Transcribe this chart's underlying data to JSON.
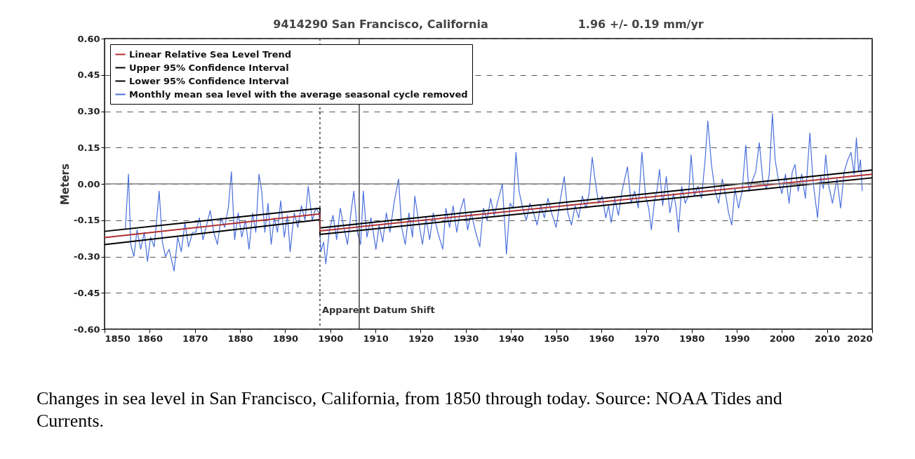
{
  "chart_data": {
    "type": "line",
    "title": "9414290 San Francisco, California",
    "subtitle": "1.96 +/- 0.19 mm/yr",
    "ylabel": "Meters",
    "xlim": [
      1850,
      2020
    ],
    "xticks": [
      1850,
      1860,
      1870,
      1880,
      1890,
      1900,
      1910,
      1920,
      1930,
      1940,
      1950,
      1960,
      1970,
      1980,
      1990,
      2000,
      2010,
      2020
    ],
    "ylim": [
      -0.6,
      0.6
    ],
    "yticks": [
      {
        "value": -0.6,
        "label": "-0.60"
      },
      {
        "value": -0.45,
        "label": "-0.45"
      },
      {
        "value": -0.3,
        "label": "-0.30"
      },
      {
        "value": -0.15,
        "label": "-0.15"
      },
      {
        "value": 0,
        "label": "0.00"
      },
      {
        "value": 0.15,
        "label": "0.15"
      },
      {
        "value": 0.3,
        "label": "0.30"
      },
      {
        "value": 0.45,
        "label": "0.45"
      },
      {
        "value": 0.6,
        "label": "0.60"
      }
    ],
    "grid": "y",
    "legend": "top left",
    "marker": "none",
    "line_style": "solid",
    "ref_lines": [
      {
        "axis": "y",
        "value": 0,
        "color": "#808080",
        "line_style": "solid"
      },
      {
        "axis": "x",
        "value": 1897.7,
        "label": "Apparent Datum Shift",
        "color": "#404040",
        "line_style": "dotted"
      },
      {
        "axis": "x",
        "value": 1906.4,
        "color": "#404040",
        "line_style": "solid"
      }
    ],
    "series": [
      {
        "name": "Linear Relative Sea Level Trend",
        "color": "#b03030",
        "x": [
          1850,
          1897.7,
          1897.7,
          2020
        ],
        "values": [
          -0.222,
          -0.124,
          -0.194,
          0.04
        ]
      },
      {
        "name": "Upper 95% Confidence Interval",
        "color": "#000000",
        "x": [
          1850,
          1897.7,
          1897.7,
          2020
        ],
        "values": [
          -0.196,
          -0.101,
          -0.182,
          0.057
        ]
      },
      {
        "name": "Lower 95% Confidence Interval",
        "color": "#000000",
        "x": [
          1850,
          1897.7,
          1897.7,
          2020
        ],
        "values": [
          -0.251,
          -0.148,
          -0.209,
          0.025
        ]
      },
      {
        "name": "Monthly mean sea level with the average seasonal cycle removed",
        "color": "#4a6fdc",
        "x": [
          1854.6,
          1855.3,
          1855.8,
          1856.5,
          1857.2,
          1858,
          1858.8,
          1859.5,
          1860.2,
          1861,
          1862.1,
          1862.8,
          1863.5,
          1864.3,
          1865.4,
          1866.2,
          1867,
          1867.8,
          1868.6,
          1869.5,
          1870.2,
          1871,
          1871.8,
          1872.6,
          1873.4,
          1874.2,
          1875,
          1875.8,
          1876.6,
          1877.4,
          1878.1,
          1878.8,
          1879.6,
          1880.4,
          1881.2,
          1882,
          1882.8,
          1883.5,
          1884.2,
          1884.8,
          1885.5,
          1886.2,
          1886.9,
          1887.6,
          1888.3,
          1889,
          1889.8,
          1890.5,
          1891.1,
          1892,
          1892.8,
          1893.6,
          1894.4,
          1895.1,
          1896,
          1896.8,
          1897.5,
          1897.9,
          1898.5,
          1899,
          1899.8,
          1900.6,
          1901.4,
          1902.2,
          1903,
          1903.8,
          1904.5,
          1905.2,
          1906,
          1906.7,
          1907.3,
          1908.1,
          1909,
          1910.1,
          1910.8,
          1911.6,
          1912.4,
          1913.2,
          1914.1,
          1915.1,
          1915.8,
          1916.6,
          1917.4,
          1918.2,
          1918.7,
          1919.6,
          1920.4,
          1921.2,
          1922,
          1922.8,
          1923.8,
          1924.9,
          1925.6,
          1926.4,
          1927.2,
          1928,
          1928.8,
          1929.6,
          1930.4,
          1931.2,
          1932.2,
          1933.1,
          1933.9,
          1934.7,
          1935.5,
          1936.3,
          1937.1,
          1938.1,
          1939,
          1939.8,
          1940.5,
          1941.1,
          1941.8,
          1942.6,
          1943.4,
          1944.2,
          1945,
          1945.8,
          1946.6,
          1947.4,
          1948.2,
          1949,
          1950,
          1950.8,
          1951.8,
          1952.6,
          1953.4,
          1954.2,
          1955,
          1955.8,
          1956.6,
          1957.3,
          1958,
          1958.6,
          1959.4,
          1960.2,
          1961,
          1961.6,
          1962.2,
          1963,
          1963.8,
          1964.6,
          1965.8,
          1966.6,
          1967.4,
          1968.2,
          1969,
          1969.8,
          1970.5,
          1971.1,
          1971.8,
          1972.4,
          1972.9,
          1973.6,
          1974.4,
          1975.2,
          1976,
          1976.6,
          1977.1,
          1977.8,
          1978.6,
          1979.3,
          1979.9,
          1980.6,
          1981.4,
          1982.2,
          1983,
          1983.6,
          1984.4,
          1985.2,
          1986,
          1986.8,
          1987.6,
          1988.2,
          1988.9,
          1989.6,
          1990.4,
          1991.2,
          1992,
          1992.7,
          1993.4,
          1994.2,
          1995,
          1995.8,
          1996.6,
          1997.2,
          1997.9,
          1998.5,
          1999.2,
          2000,
          2000.8,
          2001.6,
          2002.3,
          2002.9,
          2003.6,
          2004.4,
          2005.2,
          2006.2,
          2006.9,
          2007.9,
          2008.6,
          2009.2,
          2009.7,
          2010.4,
          2011.2,
          2012.2,
          2013,
          2013.8,
          2014.6,
          2015.3,
          2016,
          2016.5,
          2017,
          2017.4,
          2017.8
        ],
        "values": [
          -0.19,
          0.04,
          -0.25,
          -0.3,
          -0.19,
          -0.27,
          -0.2,
          -0.32,
          -0.22,
          -0.26,
          -0.03,
          -0.24,
          -0.3,
          -0.27,
          -0.36,
          -0.22,
          -0.28,
          -0.16,
          -0.26,
          -0.2,
          -0.2,
          -0.14,
          -0.23,
          -0.17,
          -0.11,
          -0.2,
          -0.25,
          -0.14,
          -0.18,
          -0.1,
          0.05,
          -0.23,
          -0.12,
          -0.22,
          -0.15,
          -0.27,
          -0.12,
          -0.2,
          0.04,
          -0.03,
          -0.2,
          -0.08,
          -0.25,
          -0.14,
          -0.2,
          -0.07,
          -0.22,
          -0.13,
          -0.28,
          -0.12,
          -0.18,
          -0.09,
          -0.15,
          -0.01,
          -0.15,
          -0.1,
          -0.12,
          -0.28,
          -0.24,
          -0.33,
          -0.19,
          -0.13,
          -0.23,
          -0.1,
          -0.18,
          -0.25,
          -0.13,
          -0.03,
          -0.2,
          -0.25,
          -0.03,
          -0.22,
          -0.14,
          -0.27,
          -0.17,
          -0.24,
          -0.12,
          -0.2,
          -0.08,
          0.02,
          -0.18,
          -0.25,
          -0.12,
          -0.22,
          -0.05,
          -0.16,
          -0.25,
          -0.14,
          -0.23,
          -0.12,
          -0.2,
          -0.27,
          -0.1,
          -0.18,
          -0.09,
          -0.2,
          -0.11,
          -0.06,
          -0.19,
          -0.12,
          -0.2,
          -0.26,
          -0.1,
          -0.15,
          -0.06,
          -0.13,
          -0.07,
          0.0,
          -0.29,
          -0.08,
          -0.1,
          0.13,
          -0.03,
          -0.1,
          -0.15,
          -0.08,
          -0.12,
          -0.17,
          -0.09,
          -0.14,
          -0.06,
          -0.12,
          -0.18,
          -0.08,
          0.03,
          -0.12,
          -0.17,
          -0.09,
          -0.14,
          -0.05,
          -0.1,
          -0.04,
          0.11,
          0.02,
          -0.08,
          -0.05,
          -0.14,
          -0.09,
          -0.16,
          -0.06,
          -0.13,
          -0.03,
          0.07,
          -0.08,
          -0.03,
          -0.1,
          0.13,
          -0.05,
          -0.1,
          -0.19,
          -0.07,
          -0.02,
          0.06,
          -0.09,
          0.03,
          -0.12,
          -0.04,
          -0.1,
          -0.2,
          -0.01,
          -0.08,
          -0.05,
          0.12,
          -0.05,
          -0.01,
          -0.06,
          0.1,
          0.26,
          0.08,
          -0.03,
          -0.08,
          0.02,
          -0.05,
          -0.12,
          -0.17,
          -0.02,
          -0.1,
          -0.03,
          0.16,
          -0.03,
          0.01,
          0.05,
          0.17,
          0.01,
          -0.02,
          0.04,
          0.29,
          0.1,
          0.02,
          -0.04,
          0.04,
          -0.08,
          0.05,
          0.08,
          -0.03,
          0.04,
          -0.06,
          0.21,
          0.01,
          -0.14,
          0.03,
          -0.02,
          0.12,
          -0.01,
          -0.08,
          0.02,
          -0.1,
          0.05,
          0.1,
          0.13,
          0.04,
          0.19,
          0.05,
          0.1,
          -0.03
        ]
      }
    ],
    "annotations": [
      "Changes in sea level in San Francisco, California, from 1850 through today. Source: NOAA Tides and Currents."
    ]
  }
}
